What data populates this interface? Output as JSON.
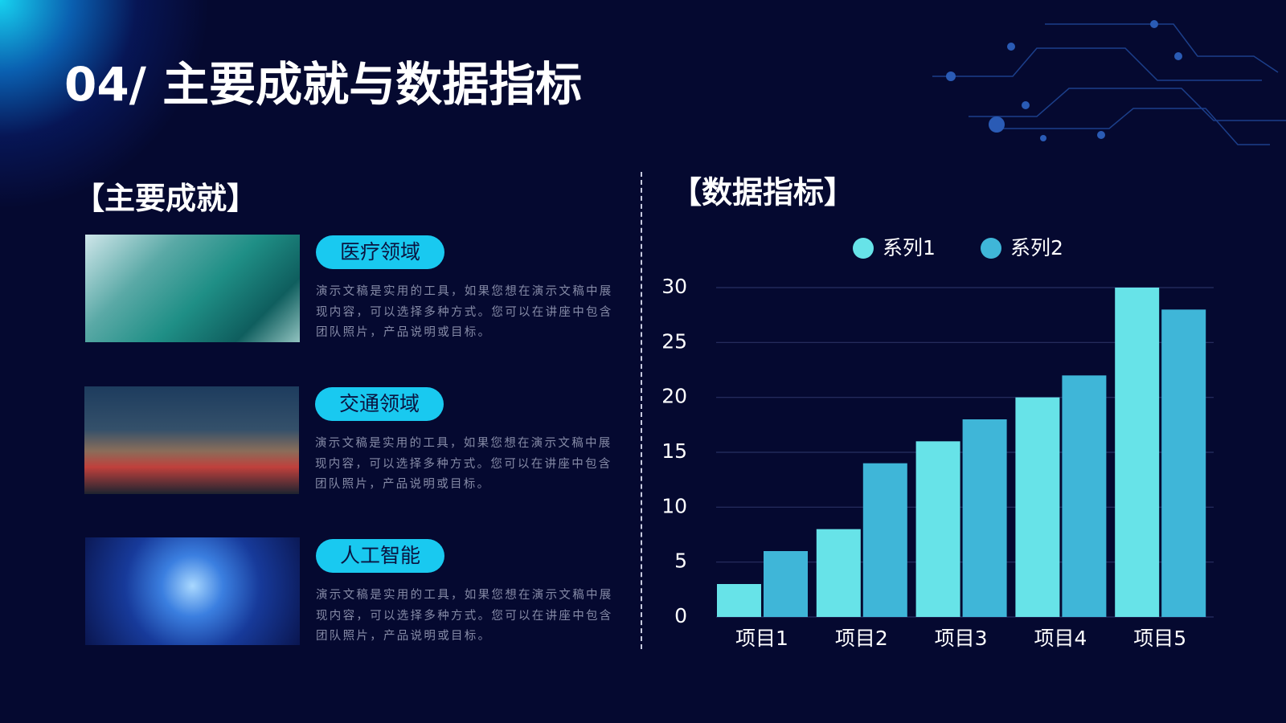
{
  "header": {
    "title": "04/ 主要成就与数据指标"
  },
  "achievements": {
    "heading": "【主要成就】",
    "items": [
      {
        "label": "医疗领域",
        "text": "演示文稿是实用的工具，如果您想在演示文稿中展现内容，可以选择多种方式。您可以在讲座中包含团队照片，产品说明或目标。"
      },
      {
        "label": "交通领域",
        "text": "演示文稿是实用的工具，如果您想在演示文稿中展现内容，可以选择多种方式。您可以在讲座中包含团队照片，产品说明或目标。"
      },
      {
        "label": "人工智能",
        "text": "演示文稿是实用的工具，如果您想在演示文稿中展现内容，可以选择多种方式。您可以在讲座中包含团队照片，产品说明或目标。"
      }
    ]
  },
  "chart_data": {
    "type": "bar",
    "title": "【数据指标】",
    "categories": [
      "项目1",
      "项目2",
      "项目3",
      "项目4",
      "项目5"
    ],
    "series": [
      {
        "name": "系列1",
        "color": "#67e3e8",
        "values": [
          3,
          8,
          16,
          20,
          30
        ]
      },
      {
        "name": "系列2",
        "color": "#3fb6d8",
        "values": [
          6,
          14,
          18,
          22,
          28
        ]
      }
    ],
    "ylim": [
      0,
      30
    ],
    "yticks": [
      0,
      5,
      10,
      15,
      20,
      25,
      30
    ],
    "grid": true,
    "legend": "top"
  }
}
